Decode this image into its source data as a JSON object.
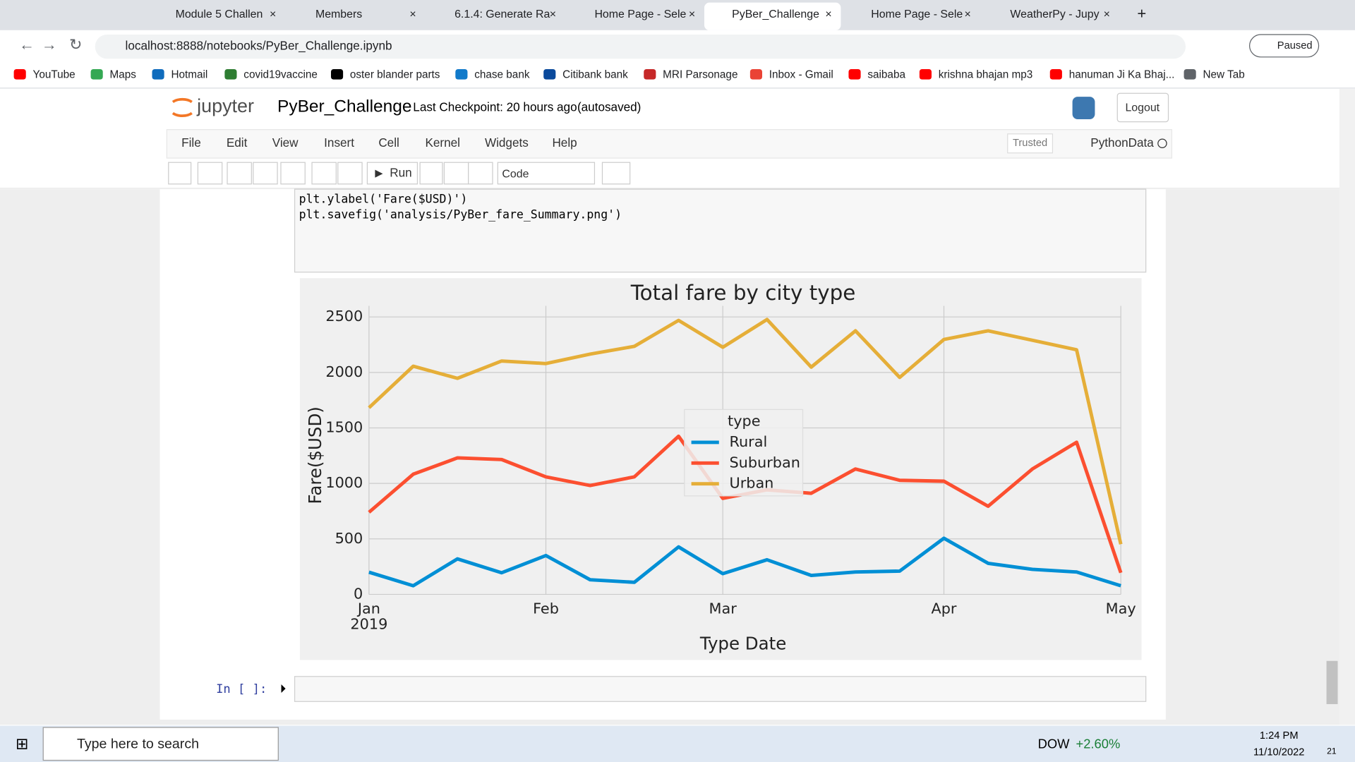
{
  "browser": {
    "tabs": [
      "Module 5 Challen",
      "Members",
      "6.1.4: Generate Ra",
      "Home Page - Sele",
      "PyBer_Challenge",
      "Home Page - Sele",
      "WeatherPy - Jupy"
    ],
    "url": "localhost:8888/notebooks/PyBer_Challenge.ipynb",
    "profile": "Paused",
    "bookmarks": [
      "YouTube",
      "Maps",
      "Hotmail",
      "covid19vaccine",
      "oster blander parts",
      "chase bank",
      "Citibank bank",
      "MRI Parsonage",
      "Inbox - Gmail",
      "saibaba",
      "krishna bhajan mp3",
      "hanuman Ji Ka Bhaj...",
      "New Tab"
    ]
  },
  "notebook": {
    "logo": "jupyter",
    "name": "PyBer_Challenge",
    "checkpoint": "Last Checkpoint: 20 hours ago",
    "autosaved": "(autosaved)",
    "logout": "Logout",
    "menu": [
      "File",
      "Edit",
      "View",
      "Insert",
      "Cell",
      "Kernel",
      "Widgets",
      "Help"
    ],
    "trusted": "Trusted",
    "kernel": "PythonData",
    "run": "Run",
    "cell_type": "Code",
    "code": [
      "plt.ylabel('Fare($USD)')",
      "plt.savefig('analysis/PyBer_fare_Summary.png')"
    ],
    "prompt": "In [ ]:"
  },
  "chart_data": {
    "type": "line",
    "title": "Total fare by city type",
    "x_label": "Type Date",
    "y_label": "Fare($USD)",
    "categories": [
      "Jan",
      null,
      null,
      null,
      "Feb",
      null,
      null,
      null,
      "Mar",
      null,
      null,
      null,
      null,
      "Apr",
      null,
      null,
      null,
      "May"
    ],
    "x_sublabel": "2019",
    "ylim": [
      0,
      2600
    ],
    "yticks": [
      0,
      500,
      1000,
      1500,
      2000,
      2500
    ],
    "grid": true,
    "legend_title": "type",
    "legend": "center",
    "series": [
      {
        "name": "Rural",
        "color": "#008fd5",
        "values": [
          200,
          78,
          320,
          195,
          350,
          132,
          109,
          428,
          187,
          312,
          171,
          202,
          210,
          506,
          280,
          226,
          202,
          78
        ]
      },
      {
        "name": "Suburban",
        "color": "#fc4f30",
        "values": [
          740,
          1083,
          1230,
          1215,
          1059,
          981,
          1059,
          1425,
          865,
          942,
          911,
          1130,
          1028,
          1020,
          794,
          1130,
          1371,
          195
        ]
      },
      {
        "name": "Urban",
        "color": "#e5ae38",
        "values": [
          1682,
          2056,
          1947,
          2103,
          2080,
          2165,
          2235,
          2469,
          2227,
          2477,
          2048,
          2375,
          1955,
          2297,
          2375,
          2290,
          2204,
          452
        ]
      }
    ]
  },
  "taskbar": {
    "search": "Type here to search",
    "ticker": "DOW",
    "change": "+2.60%",
    "time": "1:24 PM",
    "date": "11/10/2022",
    "notifications": "21"
  }
}
